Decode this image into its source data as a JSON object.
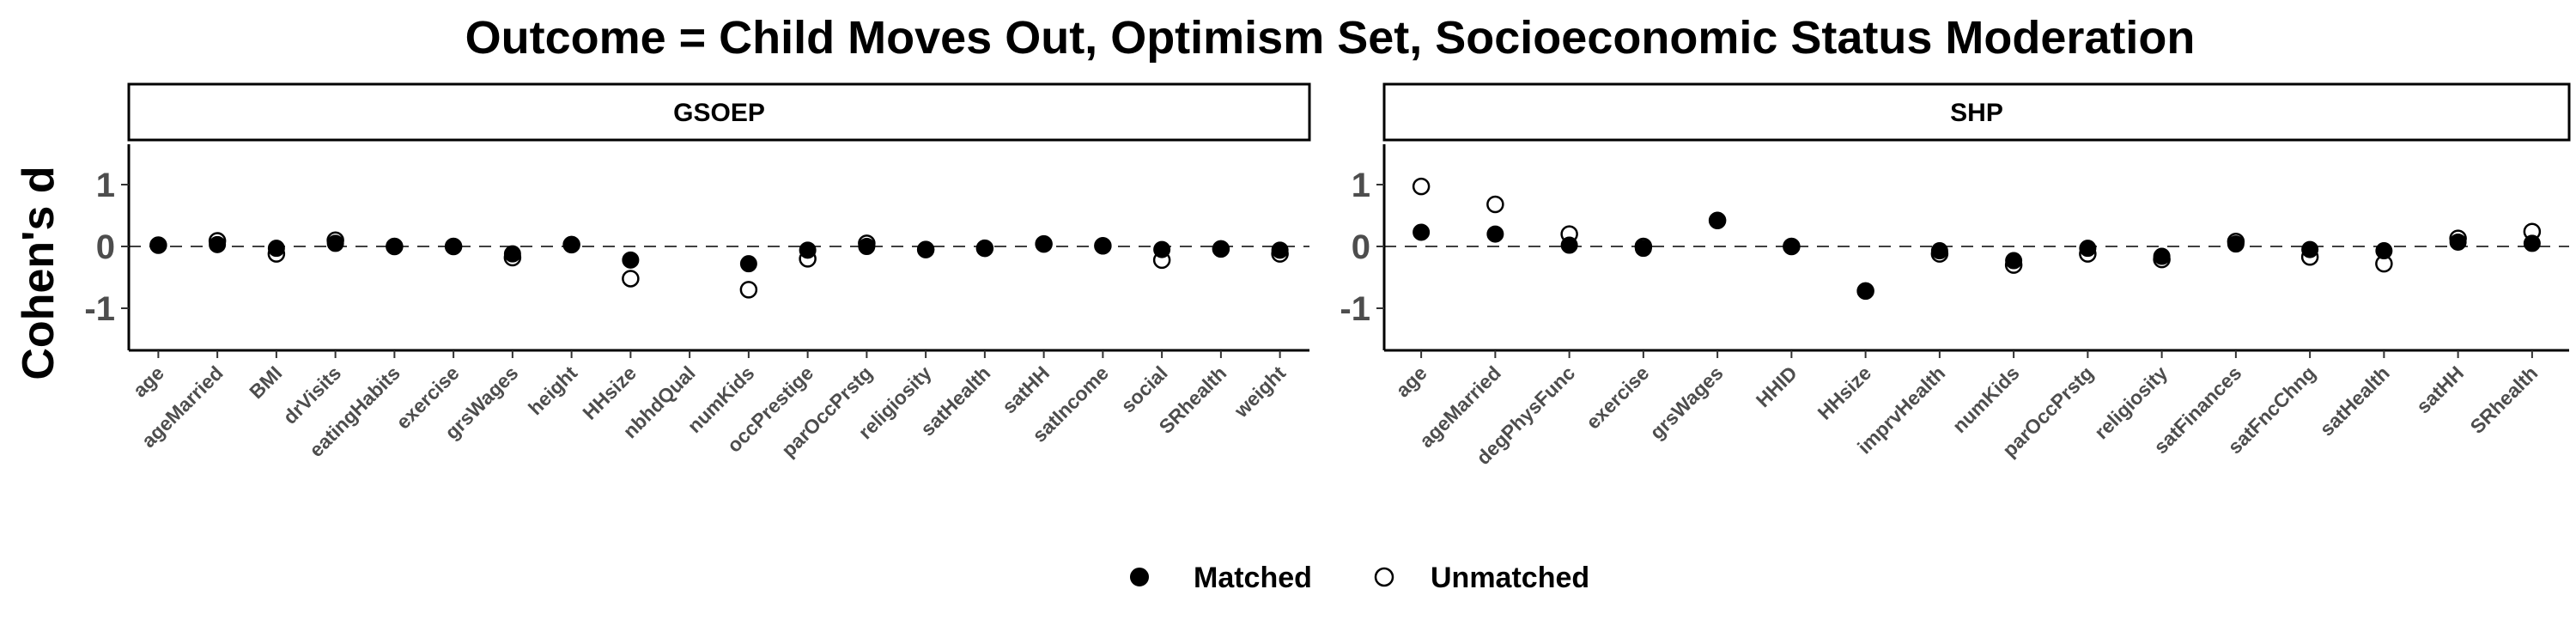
{
  "chart_data": {
    "type": "scatter",
    "title": "Outcome = Child Moves Out, Optimism Set, Socioeconomic Status Moderation",
    "ylabel": "Cohen's d",
    "ylim": [
      -1.7,
      1.7
    ],
    "yticks": [
      -1,
      0,
      1
    ],
    "reference_line": 0,
    "legend": {
      "position": "bottom",
      "entries": [
        {
          "label": "Matched",
          "marker": "filled-circle"
        },
        {
          "label": "Unmatched",
          "marker": "open-circle"
        }
      ]
    },
    "panels": [
      {
        "name": "GSOEP",
        "categories": [
          "age",
          "ageMarried",
          "BMI",
          "drVisits",
          "eatingHabits",
          "exercise",
          "grsWages",
          "height",
          "HHsize",
          "nbhdQual",
          "numKids",
          "occPrestige",
          "parOccPrstg",
          "religiosity",
          "satHealth",
          "satHH",
          "satIncome",
          "social",
          "SRhealth",
          "weight"
        ],
        "series": [
          {
            "name": "Matched",
            "values": [
              0.02,
              0.03,
              -0.03,
              0.05,
              0.0,
              0.0,
              -0.12,
              0.03,
              -0.22,
              null,
              -0.28,
              -0.06,
              0.0,
              -0.05,
              -0.03,
              0.04,
              0.01,
              -0.05,
              -0.04,
              -0.06
            ]
          },
          {
            "name": "Unmatched",
            "values": [
              0.02,
              0.09,
              -0.12,
              0.1,
              0.0,
              0.0,
              -0.18,
              0.03,
              -0.52,
              null,
              -0.7,
              -0.2,
              0.05,
              -0.05,
              -0.03,
              0.04,
              0.01,
              -0.22,
              -0.04,
              -0.12
            ]
          }
        ]
      },
      {
        "name": "SHP",
        "categories": [
          "age",
          "ageMarried",
          "degPhysFunc",
          "exercise",
          "grsWages",
          "HHID",
          "HHsize",
          "imprvHealth",
          "numKids",
          "parOccPrstg",
          "religiosity",
          "satFinances",
          "satFncChng",
          "satHealth",
          "satHH",
          "SRhealth"
        ],
        "series": [
          {
            "name": "Matched",
            "values": [
              0.23,
              0.2,
              0.02,
              -0.03,
              0.42,
              0.0,
              -0.72,
              -0.07,
              -0.23,
              -0.03,
              -0.16,
              0.04,
              -0.05,
              -0.07,
              0.07,
              0.05
            ]
          },
          {
            "name": "Unmatched",
            "values": [
              0.97,
              0.68,
              0.2,
              0.0,
              0.42,
              0.0,
              -0.72,
              -0.12,
              -0.3,
              -0.12,
              -0.21,
              0.08,
              -0.17,
              -0.28,
              0.13,
              0.24
            ]
          }
        ]
      }
    ]
  }
}
